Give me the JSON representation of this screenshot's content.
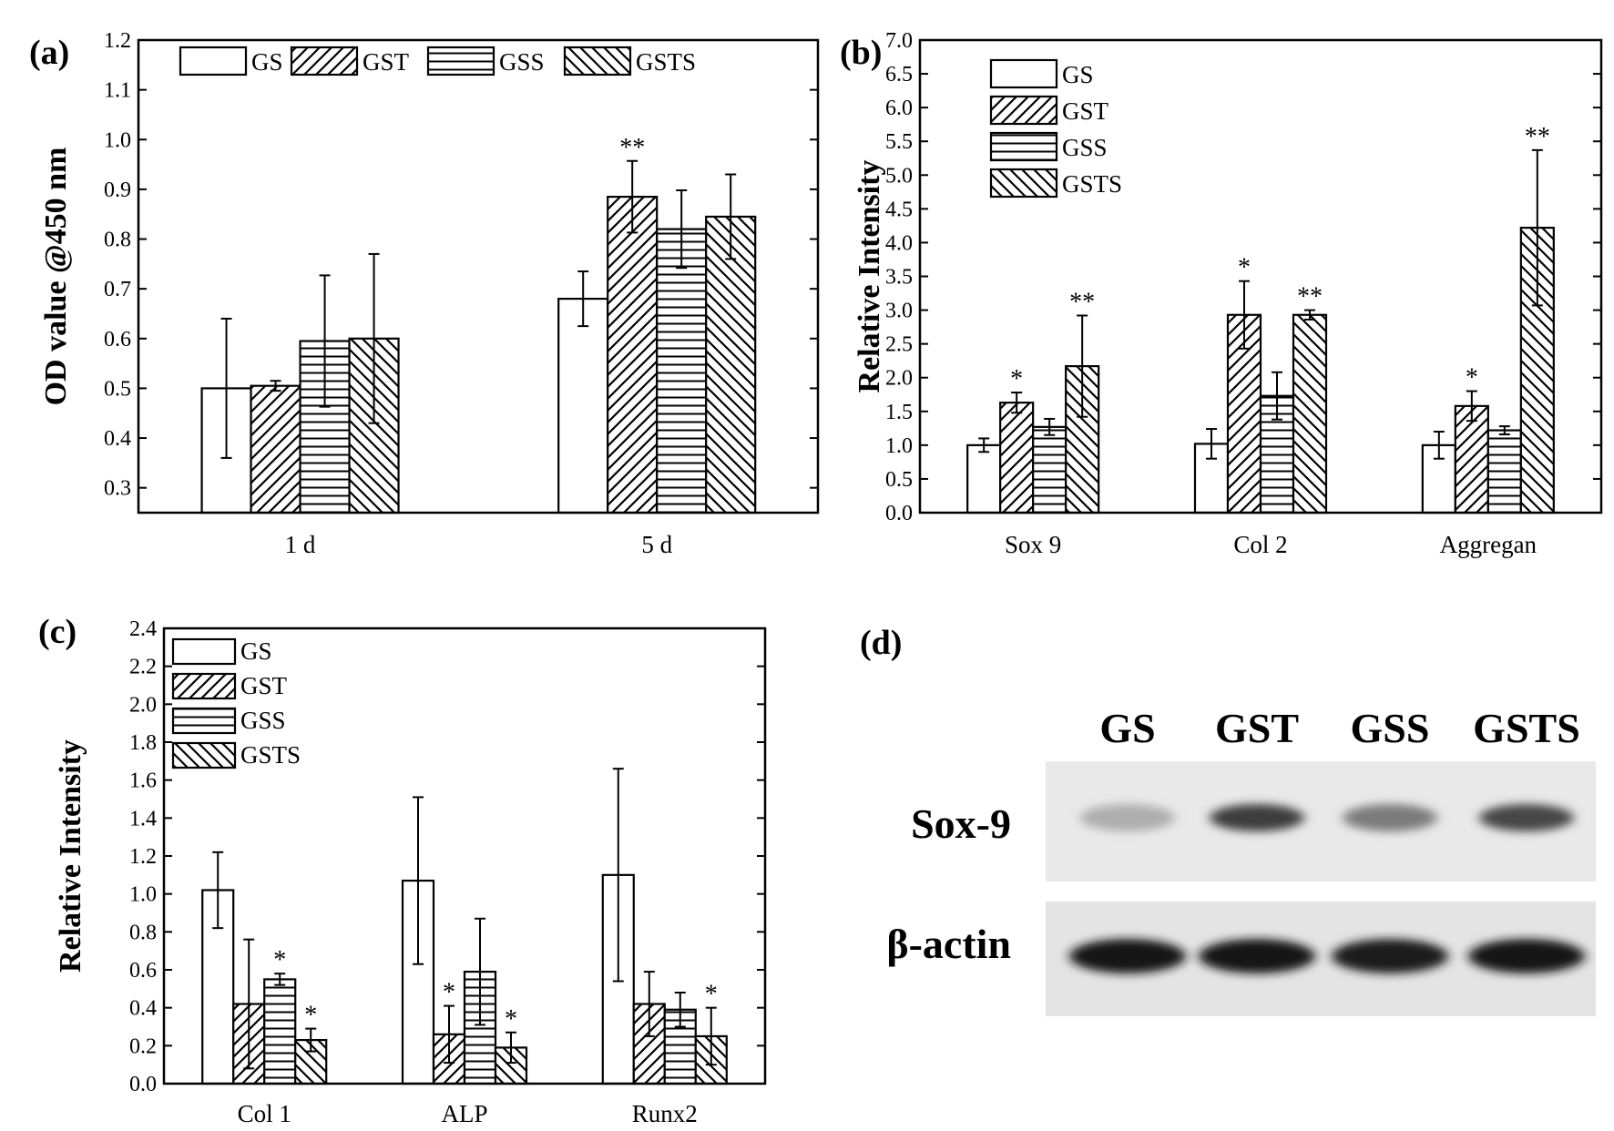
{
  "legend": [
    "GS",
    "GST",
    "GSS",
    "GSTS"
  ],
  "chart_data": [
    {
      "panel": "(a)",
      "type": "bar",
      "ylabel": "OD value @450 nm",
      "ylim": [
        0.25,
        1.2
      ],
      "yticks": [
        "0.3",
        "0.4",
        "0.5",
        "0.6",
        "0.7",
        "0.8",
        "0.9",
        "1.0",
        "1.1",
        "1.2"
      ],
      "categories": [
        "1 d",
        "5 d"
      ],
      "legend_position": "top",
      "series": [
        {
          "name": "GS",
          "values": [
            0.5,
            0.68
          ],
          "errors": [
            0.14,
            0.055
          ],
          "sig": [
            "",
            ""
          ]
        },
        {
          "name": "GST",
          "values": [
            0.505,
            0.885
          ],
          "errors": [
            0.01,
            0.072
          ],
          "sig": [
            "",
            "**"
          ]
        },
        {
          "name": "GSS",
          "values": [
            0.595,
            0.82
          ],
          "errors": [
            0.132,
            0.078
          ],
          "sig": [
            "",
            ""
          ]
        },
        {
          "name": "GSTS",
          "values": [
            0.6,
            0.845
          ],
          "errors": [
            0.17,
            0.085
          ],
          "sig": [
            "",
            ""
          ]
        }
      ]
    },
    {
      "panel": "(b)",
      "type": "bar",
      "ylabel": "Relative Intensity",
      "ylim": [
        0,
        7.0
      ],
      "yticks": [
        "0.0",
        "0.5",
        "1.0",
        "1.5",
        "2.0",
        "2.5",
        "3.0",
        "3.5",
        "4.0",
        "4.5",
        "5.0",
        "5.5",
        "6.0",
        "6.5",
        "7.0"
      ],
      "categories": [
        "Sox 9",
        "Col 2",
        "Aggregan"
      ],
      "legend_position": "top-left",
      "series": [
        {
          "name": "GS",
          "values": [
            1.0,
            1.02,
            1.0
          ],
          "errors": [
            0.1,
            0.22,
            0.2
          ],
          "sig": [
            "",
            "",
            ""
          ]
        },
        {
          "name": "GST",
          "values": [
            1.63,
            2.93,
            1.58
          ],
          "errors": [
            0.15,
            0.5,
            0.22
          ],
          "sig": [
            "*",
            "*",
            "*"
          ]
        },
        {
          "name": "GSS",
          "values": [
            1.27,
            1.73,
            1.22
          ],
          "errors": [
            0.12,
            0.35,
            0.06
          ],
          "sig": [
            "",
            "",
            ""
          ]
        },
        {
          "name": "GSTS",
          "values": [
            2.17,
            2.93,
            4.22
          ],
          "errors": [
            0.75,
            0.07,
            1.15
          ],
          "sig": [
            "**",
            "**",
            "**"
          ]
        }
      ]
    },
    {
      "panel": "(c)",
      "type": "bar",
      "ylabel": "Relative Intensity",
      "ylim": [
        0,
        2.4
      ],
      "yticks": [
        "0.0",
        "0.2",
        "0.4",
        "0.6",
        "0.8",
        "1.0",
        "1.2",
        "1.4",
        "1.6",
        "1.8",
        "2.0",
        "2.2",
        "2.4"
      ],
      "categories": [
        "Col 1",
        "ALP",
        "Runx2"
      ],
      "legend_position": "top-left",
      "series": [
        {
          "name": "GS",
          "values": [
            1.02,
            1.07,
            1.1
          ],
          "errors": [
            0.2,
            0.44,
            0.56
          ],
          "sig": [
            "",
            "",
            ""
          ]
        },
        {
          "name": "GST",
          "values": [
            0.42,
            0.26,
            0.42
          ],
          "errors": [
            0.34,
            0.15,
            0.17
          ],
          "sig": [
            "",
            "*",
            ""
          ]
        },
        {
          "name": "GSS",
          "values": [
            0.55,
            0.59,
            0.39
          ],
          "errors": [
            0.03,
            0.28,
            0.09
          ],
          "sig": [
            "*",
            "",
            ""
          ]
        },
        {
          "name": "GSTS",
          "values": [
            0.23,
            0.19,
            0.25
          ],
          "errors": [
            0.06,
            0.08,
            0.15
          ],
          "sig": [
            "*",
            "*",
            "*"
          ]
        }
      ]
    }
  ],
  "blot": {
    "panel": "(d)",
    "lanes": [
      "GS",
      "GST",
      "GSS",
      "GSTS"
    ],
    "rows": [
      {
        "label": "Sox-9",
        "intensity": [
          0.25,
          0.8,
          0.5,
          0.75
        ]
      },
      {
        "label": "β-actin",
        "intensity": [
          1.0,
          1.0,
          0.95,
          1.0
        ]
      }
    ]
  }
}
